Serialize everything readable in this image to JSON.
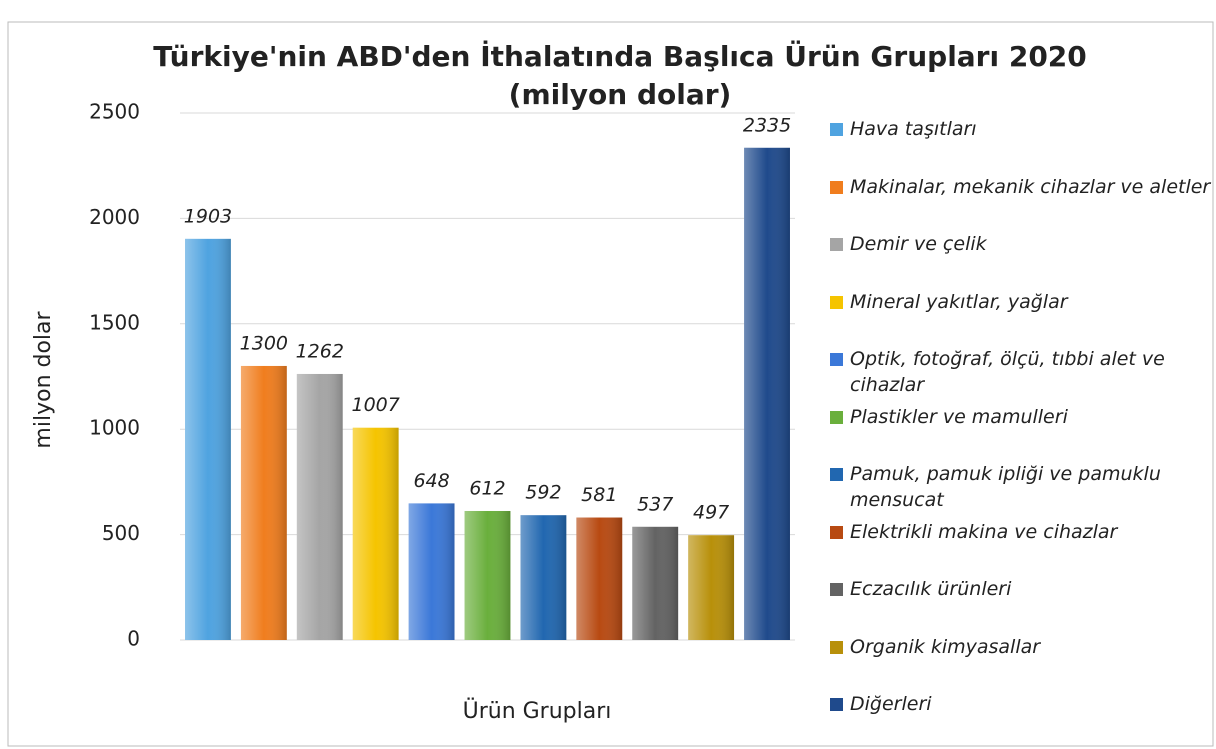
{
  "chart_data": {
    "type": "bar",
    "title": "Türkiye'nin ABD'den İthalatında Başlıca Ürün Grupları 2020",
    "subtitle": "(milyon dolar)",
    "y_label": "milyon dolar",
    "x_label": "Ürün Grupları",
    "categories": [
      "Hava taşıtları",
      "Makinalar, mekanik cihazlar ve aletler",
      "Demir ve çelik",
      "Mineral yakıtlar, yağlar",
      "Optik, fotoğraf, ölçü, tıbbi alet ve cihazlar",
      "Plastikler ve mamulleri",
      "Pamuk, pamuk ipliği ve pamuklu mensucat",
      "Elektrikli makina ve cihazlar",
      "Eczacılık ürünleri",
      "Organik kimyasallar",
      "Diğerleri"
    ],
    "values": [
      1903,
      1300,
      1262,
      1007,
      648,
      612,
      592,
      581,
      537,
      497,
      2335
    ],
    "colors": [
      "#4fa3e0",
      "#f07d1e",
      "#a5a5a5",
      "#f5c400",
      "#3b78d8",
      "#6aaf3c",
      "#2167b0",
      "#b84a12",
      "#636363",
      "#b8900a",
      "#1f4a8c"
    ],
    "ylim": [
      0,
      2500
    ],
    "yticks": [
      0,
      500,
      1000,
      1500,
      2000,
      2500
    ],
    "grid": true,
    "legend": "right"
  }
}
